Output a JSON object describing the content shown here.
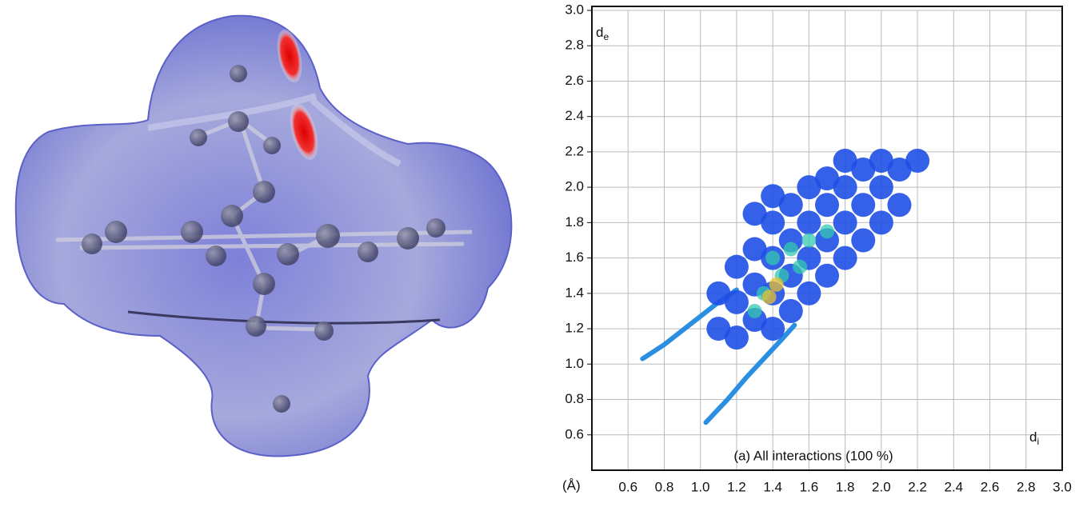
{
  "chart_data": {
    "type": "scatter",
    "caption": "(a) All interactions (100 %)",
    "x_label": {
      "main": "d",
      "sub": "i"
    },
    "y_label": {
      "main": "d",
      "sub": "e"
    },
    "unit_label": "(Å)",
    "xlim": [
      0.4,
      3.0
    ],
    "ylim": [
      0.4,
      3.0
    ],
    "xticks": [
      0.6,
      0.8,
      {
        "value": 1,
        "label": "1.0"
      },
      1.2,
      1.4,
      1.6,
      1.8,
      {
        "value": 2,
        "label": "2.0"
      },
      2.2,
      2.4,
      2.6,
      2.8,
      {
        "value": 3,
        "label": "3.0"
      }
    ],
    "yticks": [
      0.6,
      0.8,
      {
        "value": 1,
        "label": "1.0"
      },
      1.2,
      1.4,
      1.6,
      1.8,
      {
        "value": 2,
        "label": "2.0"
      },
      2.2,
      2.4,
      2.6,
      2.8,
      {
        "value": 3,
        "label": "3.0"
      }
    ],
    "grid": true,
    "series": [
      {
        "mode": "line",
        "color": "#2a8fe0",
        "x": [
          0.68,
          0.8,
          0.9,
          1.0,
          1.1,
          1.2
        ],
        "y": [
          1.03,
          1.11,
          1.19,
          1.27,
          1.35,
          1.42
        ]
      },
      {
        "mode": "line",
        "color": "#2a8fe0",
        "x": [
          1.03,
          1.15,
          1.25,
          1.35,
          1.45,
          1.52
        ],
        "y": [
          0.67,
          0.8,
          0.92,
          1.03,
          1.14,
          1.22
        ]
      },
      {
        "mode": "scatter",
        "color": "#1f4fe6",
        "x": [
          1.1,
          1.2,
          1.1,
          1.2,
          1.2,
          1.3,
          1.3,
          1.3,
          1.3,
          1.4,
          1.4,
          1.4,
          1.4,
          1.4,
          1.5,
          1.5,
          1.5,
          1.5,
          1.6,
          1.6,
          1.6,
          1.6,
          1.7,
          1.7,
          1.7,
          1.7,
          1.8,
          1.8,
          1.8,
          1.8,
          1.9,
          1.9,
          1.9,
          2.0,
          2.0,
          2.0,
          2.1,
          2.1,
          2.2
        ],
        "y": [
          1.2,
          1.15,
          1.4,
          1.35,
          1.55,
          1.25,
          1.45,
          1.65,
          1.85,
          1.2,
          1.4,
          1.6,
          1.8,
          1.95,
          1.3,
          1.5,
          1.7,
          1.9,
          1.4,
          1.6,
          1.8,
          2.0,
          1.5,
          1.7,
          1.9,
          2.05,
          1.6,
          1.8,
          2.0,
          2.15,
          1.7,
          1.9,
          2.1,
          1.8,
          2.0,
          2.15,
          1.9,
          2.1,
          2.15
        ]
      },
      {
        "mode": "scatter",
        "color": "#34c8b0",
        "x": [
          1.3,
          1.35,
          1.45,
          1.4,
          1.5,
          1.55,
          1.6,
          1.7
        ],
        "y": [
          1.3,
          1.4,
          1.5,
          1.6,
          1.65,
          1.55,
          1.7,
          1.75
        ]
      },
      {
        "mode": "scatter",
        "color": "#e8c030",
        "x": [
          1.38,
          1.42
        ],
        "y": [
          1.38,
          1.45
        ]
      }
    ]
  }
}
